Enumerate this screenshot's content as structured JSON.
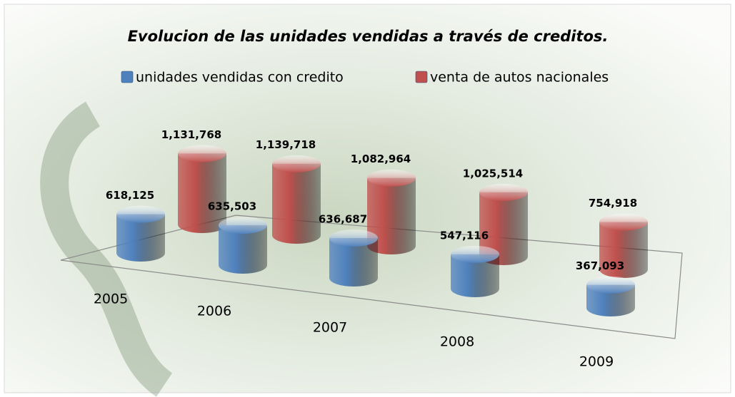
{
  "chart_data": {
    "type": "cylinder3d",
    "title": "Evolucion de las unidades vendidas a través de creditos.",
    "categories": [
      "2005",
      "2006",
      "2007",
      "2008",
      "2009"
    ],
    "series": [
      {
        "name": "unidades vendidas con credito",
        "color": "#4f81bd",
        "values": [
          618125,
          635503,
          636687,
          547116,
          367093
        ],
        "value_labels": [
          "618,125",
          "635,503",
          "636,687",
          "547,116",
          "367,093"
        ]
      },
      {
        "name": "venta de autos nacionales",
        "color": "#c0504d",
        "values": [
          1131768,
          1139718,
          1082964,
          1025514,
          754918
        ],
        "value_labels": [
          "1,131,768",
          "1,139,718",
          "1,082,964",
          "1,025,514",
          "754,918"
        ]
      }
    ],
    "legend": "top"
  }
}
